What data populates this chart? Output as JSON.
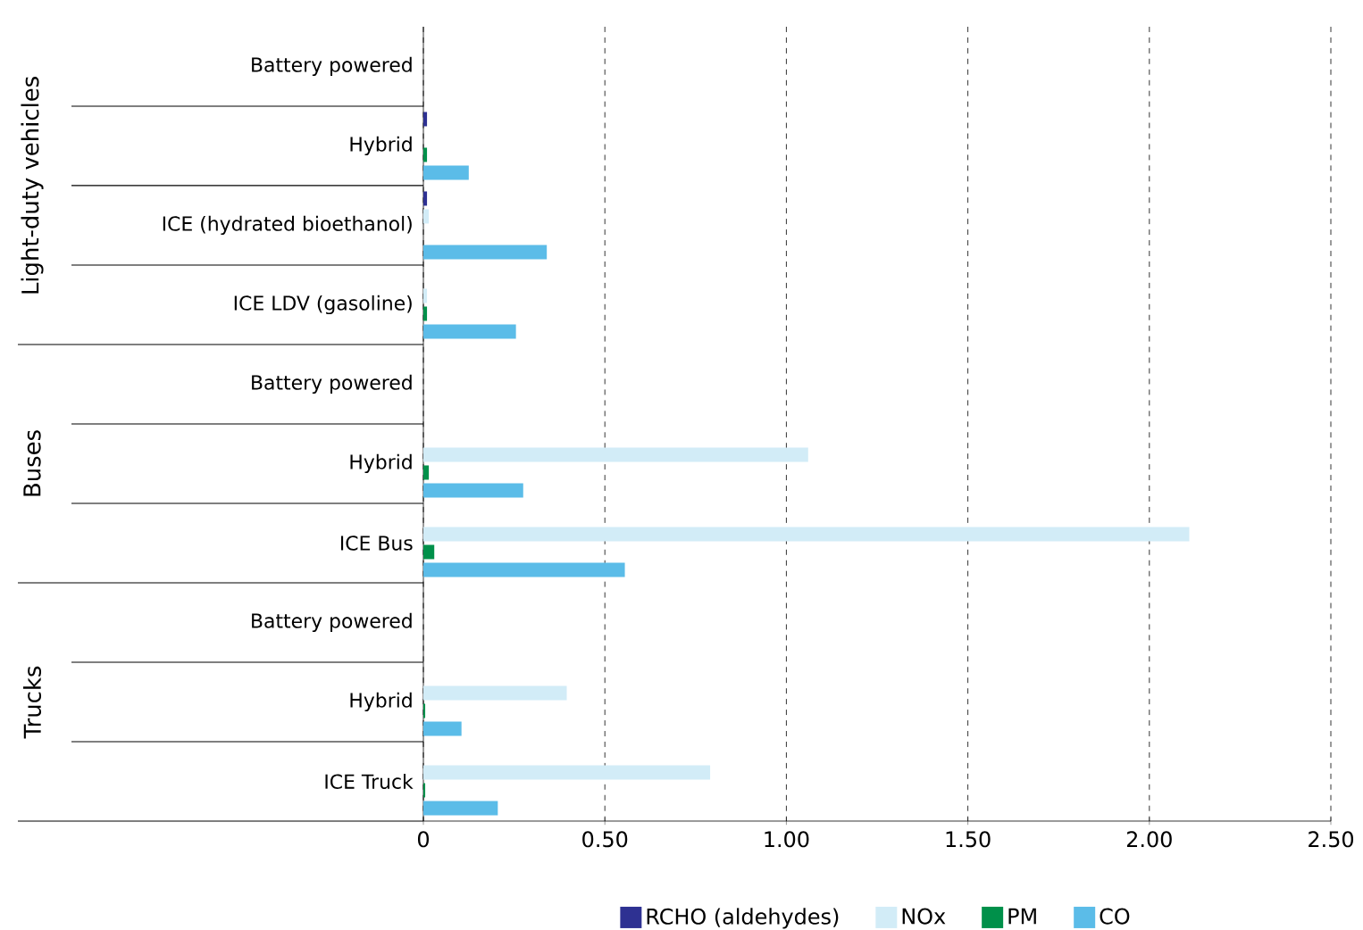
{
  "chart_data": {
    "type": "bar",
    "orientation": "horizontal",
    "categories": [
      "Battery powered",
      "Hybrid",
      "ICE (hydrated bioethanol)",
      "ICE LDV (gasoline)",
      "Battery powered",
      "Hybrid",
      "ICE Bus",
      "Battery powered",
      "Hybrid",
      "ICE Truck"
    ],
    "series": [
      {
        "name": "RCHO (aldehydes)",
        "color": "#2e3192",
        "values": [
          0,
          0.01,
          0.01,
          0,
          0,
          0,
          0,
          0,
          0,
          0
        ]
      },
      {
        "name": "NOx",
        "color": "#d2ecf7",
        "values": [
          0,
          null,
          0.015,
          0.01,
          0,
          1.06,
          2.11,
          0,
          0.395,
          0.79
        ]
      },
      {
        "name": "PM",
        "color": "#00904a",
        "values": [
          0,
          0.01,
          0,
          0.01,
          0,
          0.015,
          0.03,
          0,
          0.005,
          0.005
        ]
      },
      {
        "name": "CO",
        "color": "#5bbce8",
        "values": [
          0,
          0.125,
          0.34,
          0.255,
          0,
          0.275,
          0.555,
          0,
          0.105,
          0.205
        ]
      }
    ],
    "xlim": [
      0,
      2.5
    ],
    "xticks": [
      {
        "value": 0,
        "label": "0"
      },
      {
        "value": 0.5,
        "label": "0.50"
      },
      {
        "value": 1,
        "label": "1.00"
      },
      {
        "value": 1.5,
        "label": "1.50"
      },
      {
        "value": 2,
        "label": "2.00"
      },
      {
        "value": 2.5,
        "label": "2.50"
      }
    ],
    "grid": "x",
    "legend": "bottom",
    "annotations": [
      "Light-duty vehicles",
      "Buses",
      "Trucks"
    ]
  }
}
